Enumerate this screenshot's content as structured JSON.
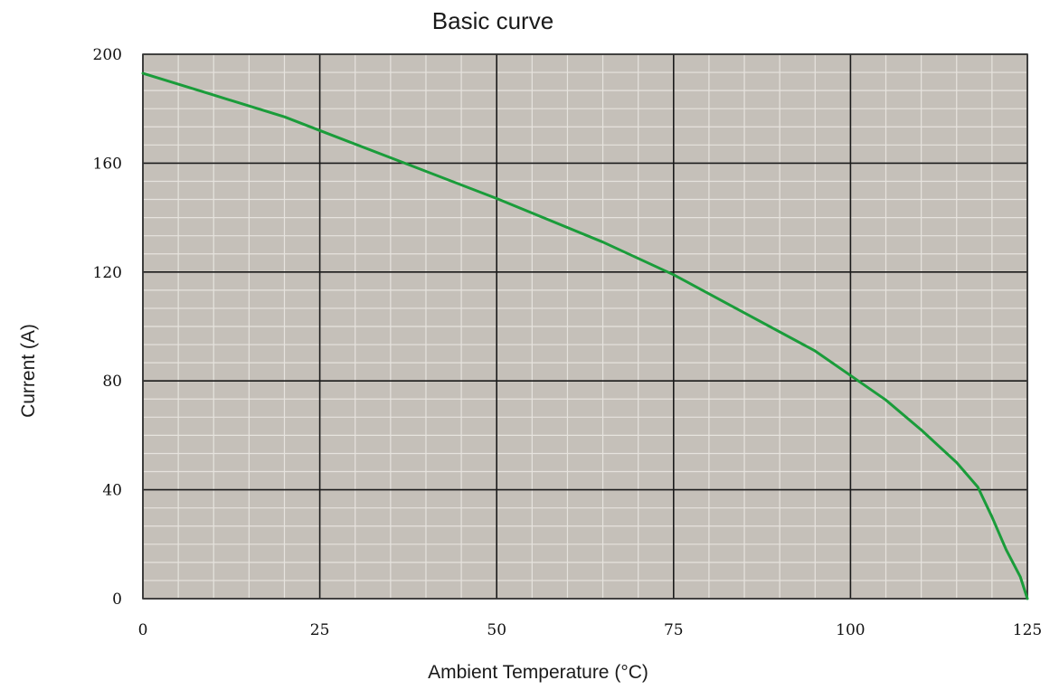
{
  "chart_data": {
    "type": "line",
    "title": "Basic curve",
    "xlabel": "Ambient Temperature (°C)",
    "ylabel": "Current (A)",
    "xlim": [
      0,
      125
    ],
    "ylim": [
      0,
      200
    ],
    "x_ticks": [
      "0",
      "25",
      "50",
      "75",
      "100",
      "125"
    ],
    "y_ticks": [
      "0",
      "40",
      "80",
      "120",
      "160",
      "200"
    ],
    "grid": true,
    "colors": {
      "plot_background": "#c5c0b9",
      "grid_major": "#1a1a1a",
      "grid_minor": "#e6e3de",
      "line": "#1a9c3a"
    },
    "series": [
      {
        "x": [
          0,
          10,
          20,
          25,
          35,
          50,
          65,
          75,
          85,
          95,
          100,
          105,
          110,
          115,
          118,
          120,
          122,
          124,
          125
        ],
        "values": [
          193,
          185,
          177,
          172,
          162,
          147,
          131,
          119,
          105,
          91,
          82,
          73,
          62,
          50,
          41,
          30,
          18,
          8,
          0
        ]
      }
    ]
  }
}
